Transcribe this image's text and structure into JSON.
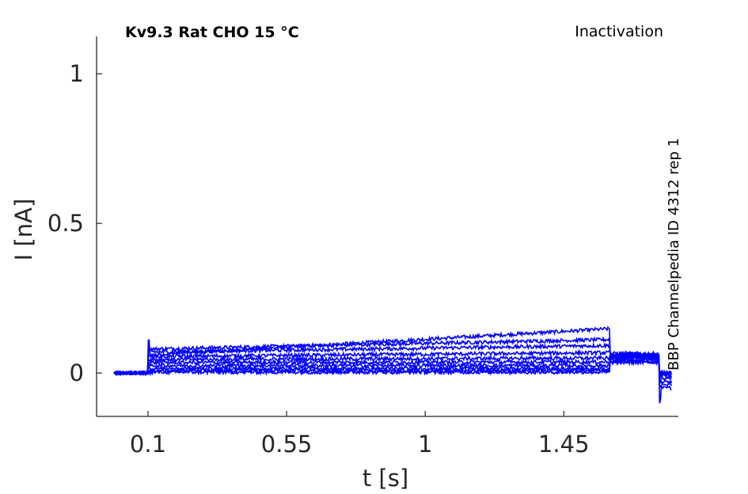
{
  "chart_data": {
    "type": "line",
    "title": "Kv9.3  Rat  CHO  15 °C",
    "subtitle": "Inactivation",
    "side_label": "BBP Channelpedia ID 4312 rep 1",
    "xlabel": "t [s]",
    "ylabel": "I [nA]",
    "xlim": [
      -0.067,
      1.822
    ],
    "ylim": [
      -0.145,
      1.125
    ],
    "x_ticks": [
      0.1,
      0.55,
      1,
      1.45
    ],
    "x_tick_labels": [
      "0.1",
      "0.55",
      "1",
      "1.45"
    ],
    "y_ticks": [
      0,
      0.5,
      1
    ],
    "y_tick_labels": [
      "0",
      "0.5",
      "1"
    ],
    "grid": false,
    "series_color": "#0000ff",
    "traces": [
      {
        "baseline": 0.0,
        "step_start": 0.06,
        "step_end": 0.148,
        "post": -0.05,
        "tail": 0.055
      },
      {
        "baseline": 0.0,
        "step_start": 0.08,
        "step_end": 0.112,
        "post": -0.04,
        "tail": 0.06
      },
      {
        "baseline": 0.0,
        "step_start": 0.07,
        "step_end": 0.092,
        "post": -0.03,
        "tail": 0.065
      },
      {
        "baseline": 0.0,
        "step_start": 0.055,
        "step_end": 0.068,
        "post": -0.02,
        "tail": 0.06
      },
      {
        "baseline": 0.0,
        "step_start": 0.045,
        "step_end": 0.05,
        "post": -0.01,
        "tail": 0.058
      },
      {
        "baseline": 0.0,
        "step_start": 0.035,
        "step_end": 0.037,
        "post": -0.005,
        "tail": 0.055
      },
      {
        "baseline": 0.0,
        "step_start": 0.025,
        "step_end": 0.025,
        "post": 0.0,
        "tail": 0.05
      },
      {
        "baseline": 0.0,
        "step_start": 0.015,
        "step_end": 0.015,
        "post": 0.0,
        "tail": 0.045
      },
      {
        "baseline": 0.0,
        "step_start": 0.008,
        "step_end": 0.008,
        "post": 0.0,
        "tail": 0.04
      },
      {
        "baseline": 0.0,
        "step_start": 0.003,
        "step_end": 0.003,
        "post": 0.0,
        "tail": 0.035
      }
    ],
    "t_start": -0.01,
    "t_step_on": 0.1,
    "t_step_off": 1.6,
    "t_tail_off": 1.76,
    "t_end": 1.8,
    "peak_transient": 0.11,
    "tail_dip": -0.095
  }
}
